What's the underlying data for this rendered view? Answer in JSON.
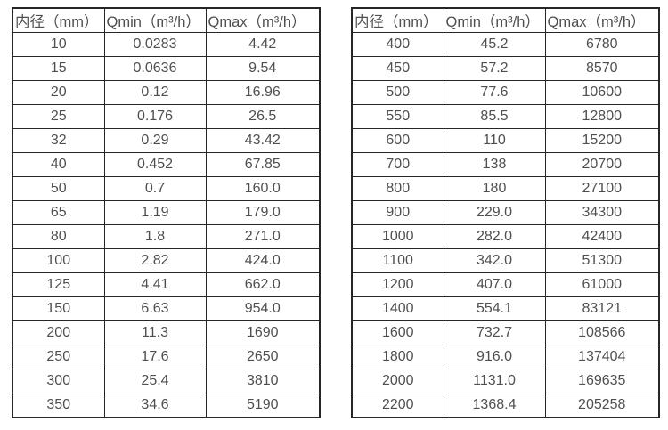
{
  "page": {
    "background": "#ffffff",
    "text_color": "#4f4f4f",
    "border_color": "#262626"
  },
  "tables": [
    {
      "name": "flow-spec-table-small-diameters",
      "headers": [
        "内径（mm）",
        "Qmin（m³/h）",
        "Qmax（m³/h）"
      ],
      "rows": [
        [
          "10",
          "0.0283",
          "4.42"
        ],
        [
          "15",
          "0.0636",
          "9.54"
        ],
        [
          "20",
          "0.12",
          "16.96"
        ],
        [
          "25",
          "0.176",
          "26.5"
        ],
        [
          "32",
          "0.29",
          "43.42"
        ],
        [
          "40",
          "0.452",
          "67.85"
        ],
        [
          "50",
          "0.7",
          "160.0"
        ],
        [
          "65",
          "1.19",
          "179.0"
        ],
        [
          "80",
          "1.8",
          "271.0"
        ],
        [
          "100",
          "2.82",
          "424.0"
        ],
        [
          "125",
          "4.41",
          "662.0"
        ],
        [
          "150",
          "6.63",
          "954.0"
        ],
        [
          "200",
          "11.3",
          "1690"
        ],
        [
          "250",
          "17.6",
          "2650"
        ],
        [
          "300",
          "25.4",
          "3810"
        ],
        [
          "350",
          "34.6",
          "5190"
        ]
      ]
    },
    {
      "name": "flow-spec-table-large-diameters",
      "headers": [
        "内径（mm）",
        "Qmin（m³/h）",
        "Qmax（m³/h）"
      ],
      "rows": [
        [
          "400",
          "45.2",
          "6780"
        ],
        [
          "450",
          "57.2",
          "8570"
        ],
        [
          "500",
          "77.6",
          "10600"
        ],
        [
          "550",
          "85.5",
          "12800"
        ],
        [
          "600",
          "110",
          "15200"
        ],
        [
          "700",
          "138",
          "20700"
        ],
        [
          "800",
          "180",
          "27100"
        ],
        [
          "900",
          "229.0",
          "34300"
        ],
        [
          "1000",
          "282.0",
          "42400"
        ],
        [
          "1100",
          "342.0",
          "51300"
        ],
        [
          "1200",
          "407.0",
          "61000"
        ],
        [
          "1400",
          "554.1",
          "83121"
        ],
        [
          "1600",
          "732.7",
          "108566"
        ],
        [
          "1800",
          "916.0",
          "137404"
        ],
        [
          "2000",
          "1131.0",
          "169635"
        ],
        [
          "2200",
          "1368.4",
          "205258"
        ]
      ]
    }
  ]
}
